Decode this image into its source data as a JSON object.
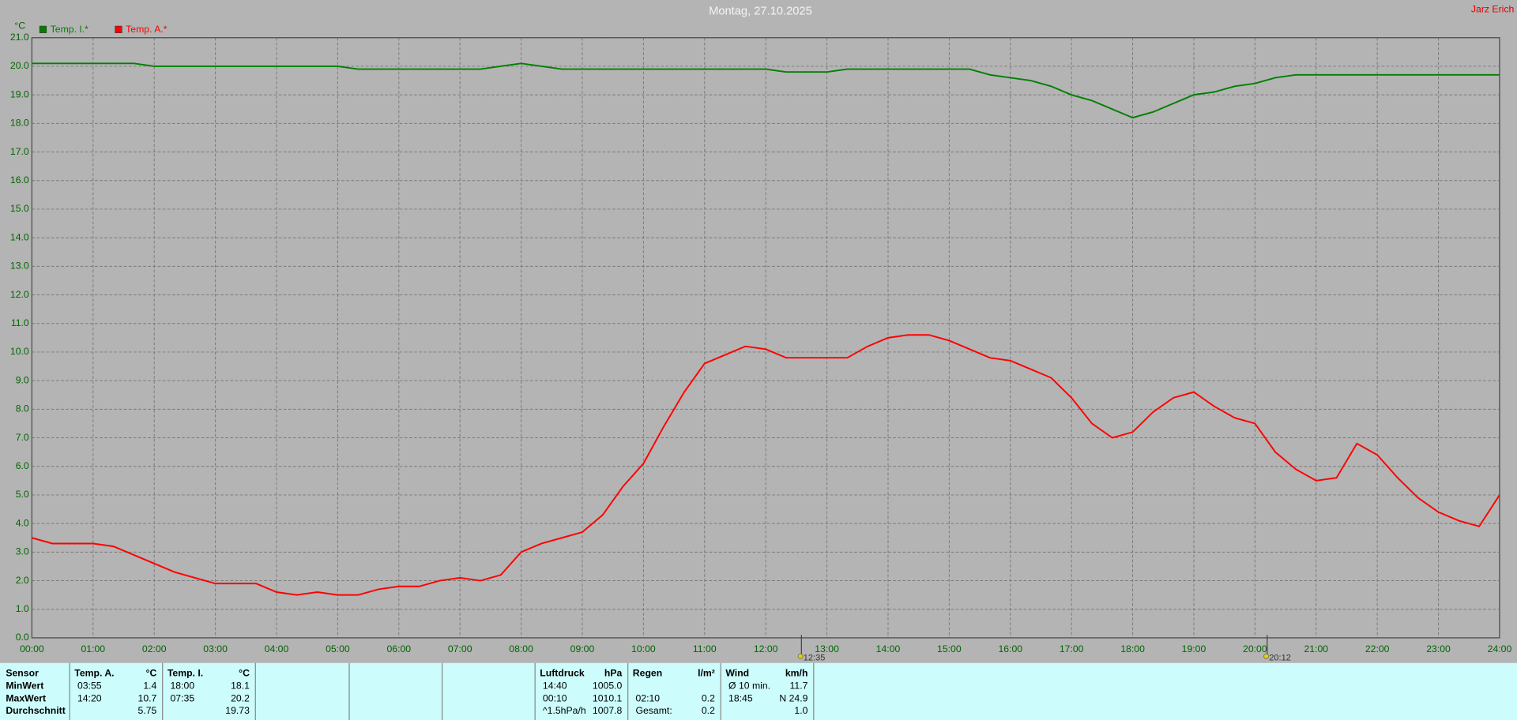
{
  "chart_data": {
    "type": "line",
    "title": "Montag, 27.10.2025",
    "owner": "Jarz Erich",
    "y_label": "°C",
    "x": [
      0,
      20,
      40,
      60,
      80,
      100,
      120,
      140,
      160,
      180,
      200,
      220,
      240,
      260,
      280,
      300,
      320,
      340,
      360,
      380,
      400,
      420,
      440,
      460,
      480,
      500,
      520,
      540,
      560,
      580,
      600,
      620,
      640,
      660,
      680,
      700,
      720,
      740,
      760,
      780,
      800,
      820,
      840,
      860,
      880,
      900,
      920,
      940,
      960,
      980,
      1000,
      1020,
      1040,
      1060,
      1080,
      1100,
      1120,
      1140,
      1160,
      1180,
      1200,
      1220,
      1240,
      1260,
      1280,
      1300,
      1320,
      1340,
      1360,
      1380,
      1400,
      1420,
      1440
    ],
    "series": [
      {
        "name": "Temp. I.*",
        "color": "#008000",
        "values": [
          20.1,
          20.1,
          20.1,
          20.1,
          20.1,
          20.1,
          20.0,
          20.0,
          20.0,
          20.0,
          20.0,
          20.0,
          20.0,
          20.0,
          20.0,
          20.0,
          19.9,
          19.9,
          19.9,
          19.9,
          19.9,
          19.9,
          19.9,
          20.0,
          20.1,
          20.0,
          19.9,
          19.9,
          19.9,
          19.9,
          19.9,
          19.9,
          19.9,
          19.9,
          19.9,
          19.9,
          19.9,
          19.8,
          19.8,
          19.8,
          19.9,
          19.9,
          19.9,
          19.9,
          19.9,
          19.9,
          19.9,
          19.7,
          19.6,
          19.5,
          19.3,
          19.0,
          18.8,
          18.5,
          18.2,
          18.4,
          18.7,
          19.0,
          19.1,
          19.3,
          19.4,
          19.6,
          19.7,
          19.7,
          19.7,
          19.7,
          19.7,
          19.7,
          19.7,
          19.7,
          19.7,
          19.7,
          19.7
        ]
      },
      {
        "name": "Temp. A.*",
        "color": "#ff0000",
        "values": [
          3.5,
          3.3,
          3.3,
          3.3,
          3.2,
          2.9,
          2.6,
          2.3,
          2.1,
          1.9,
          1.9,
          1.9,
          1.6,
          1.5,
          1.6,
          1.5,
          1.5,
          1.7,
          1.8,
          1.8,
          2.0,
          2.1,
          2.0,
          2.2,
          3.0,
          3.3,
          3.5,
          3.7,
          4.3,
          5.3,
          6.1,
          7.4,
          8.6,
          9.6,
          9.9,
          10.2,
          10.1,
          9.8,
          9.8,
          9.8,
          9.8,
          10.2,
          10.5,
          10.6,
          10.6,
          10.4,
          10.1,
          9.8,
          9.7,
          9.4,
          9.1,
          8.4,
          7.5,
          7.0,
          7.2,
          7.9,
          8.4,
          8.6,
          8.1,
          7.7,
          7.5,
          6.5,
          5.9,
          5.5,
          5.6,
          6.8,
          6.4,
          5.6,
          4.9,
          4.4,
          4.1,
          3.9,
          5.0
        ]
      }
    ],
    "xlim": [
      0,
      1440
    ],
    "xticks": [
      {
        "value": 0,
        "label": "00:00"
      },
      {
        "value": 60,
        "label": "01:00"
      },
      {
        "value": 120,
        "label": "02:00"
      },
      {
        "value": 180,
        "label": "03:00"
      },
      {
        "value": 240,
        "label": "04:00"
      },
      {
        "value": 300,
        "label": "05:00"
      },
      {
        "value": 360,
        "label": "06:00"
      },
      {
        "value": 420,
        "label": "07:00"
      },
      {
        "value": 480,
        "label": "08:00"
      },
      {
        "value": 540,
        "label": "09:00"
      },
      {
        "value": 600,
        "label": "10:00"
      },
      {
        "value": 660,
        "label": "11:00"
      },
      {
        "value": 720,
        "label": "12:00"
      },
      {
        "value": 780,
        "label": "13:00"
      },
      {
        "value": 840,
        "label": "14:00"
      },
      {
        "value": 900,
        "label": "15:00"
      },
      {
        "value": 960,
        "label": "16:00"
      },
      {
        "value": 1020,
        "label": "17:00"
      },
      {
        "value": 1080,
        "label": "18:00"
      },
      {
        "value": 1140,
        "label": "19:00"
      },
      {
        "value": 1200,
        "label": "20:00"
      },
      {
        "value": 1260,
        "label": "21:00"
      },
      {
        "value": 1320,
        "label": "22:00"
      },
      {
        "value": 1380,
        "label": "23:00"
      },
      {
        "value": 1440,
        "label": "24:00"
      }
    ],
    "ylim": [
      0,
      21
    ],
    "yticks": [
      {
        "value": 0,
        "label": "0.0"
      },
      {
        "value": 1,
        "label": "1.0"
      },
      {
        "value": 2,
        "label": "2.0"
      },
      {
        "value": 3,
        "label": "3.0"
      },
      {
        "value": 4,
        "label": "4.0"
      },
      {
        "value": 5,
        "label": "5.0"
      },
      {
        "value": 6,
        "label": "6.0"
      },
      {
        "value": 7,
        "label": "7.0"
      },
      {
        "value": 8,
        "label": "8.0"
      },
      {
        "value": 9,
        "label": "9.0"
      },
      {
        "value": 10,
        "label": "10.0"
      },
      {
        "value": 11,
        "label": "11.0"
      },
      {
        "value": 12,
        "label": "12.0"
      },
      {
        "value": 13,
        "label": "13.0"
      },
      {
        "value": 14,
        "label": "14.0"
      },
      {
        "value": 15,
        "label": "15.0"
      },
      {
        "value": 16,
        "label": "16.0"
      },
      {
        "value": 17,
        "label": "17.0"
      },
      {
        "value": 18,
        "label": "18.0"
      },
      {
        "value": 19,
        "label": "19.0"
      },
      {
        "value": 20,
        "label": "20.0"
      },
      {
        "value": 21,
        "label": "21.0"
      }
    ],
    "grid": true,
    "markers": [
      {
        "x": 755,
        "label": "12:35"
      },
      {
        "x": 1212,
        "label": "20:12"
      }
    ]
  },
  "summary": {
    "label_header": "Sensor",
    "row_labels": [
      "MinWert",
      "MaxWert",
      "Durchschnitt"
    ],
    "columns": [
      {
        "header": "Temp. A.",
        "unit": "°C",
        "rows": [
          [
            "03:55",
            "1.4"
          ],
          [
            "14:20",
            "10.7"
          ],
          [
            null,
            "5.75"
          ]
        ]
      },
      {
        "header": "Temp. I.",
        "unit": "°C",
        "rows": [
          [
            "18:00",
            "18.1"
          ],
          [
            "07:35",
            "20.2"
          ],
          [
            null,
            "19.73"
          ]
        ]
      },
      {
        "header": "Luftdruck",
        "unit": "hPa",
        "rows": [
          [
            "14:40",
            "1005.0"
          ],
          [
            "00:10",
            "1010.1"
          ],
          [
            "^1.5hPa/h",
            "1007.8"
          ]
        ]
      },
      {
        "header": "Regen",
        "unit": "l/m²",
        "rows": [
          [
            null,
            null
          ],
          [
            "02:10",
            "0.2"
          ],
          [
            "Gesamt:",
            "0.2"
          ]
        ]
      },
      {
        "header": "Wind",
        "unit": "km/h",
        "rows": [
          [
            "Ø 10 min.",
            "11.7"
          ],
          [
            "18:45",
            "N 24.9"
          ],
          [
            null,
            "1.0"
          ]
        ]
      }
    ]
  }
}
